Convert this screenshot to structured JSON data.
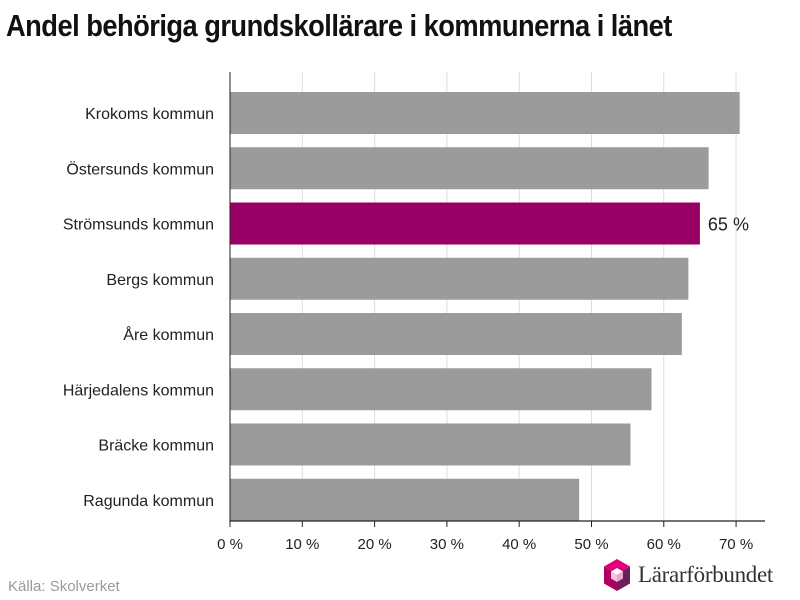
{
  "title": "Andel behöriga grundskollärare i kommunerna i länet",
  "source": "Källa: Skolverket",
  "logo": {
    "text": "Lärarförbundet",
    "icon": "lararforbundet-logo-icon"
  },
  "colors": {
    "bar_default": "#9b9b9b",
    "bar_highlight": "#990066",
    "grid": "#dddddd",
    "axis": "#222222"
  },
  "chart_data": {
    "type": "bar",
    "orientation": "horizontal",
    "title": "Andel behöriga grundskollärare i kommunerna i länet",
    "xlabel": "",
    "ylabel": "",
    "xlim": [
      0,
      74
    ],
    "grid": true,
    "x_ticks": [
      0,
      10,
      20,
      30,
      40,
      50,
      60,
      70
    ],
    "tick_labels": [
      "0 %",
      "10 %",
      "20 %",
      "30 %",
      "40 %",
      "50 %",
      "60 %",
      "70 %"
    ],
    "categories": [
      "Krokoms kommun",
      "Östersunds kommun",
      "Strömsunds kommun",
      "Bergs kommun",
      "Åre kommun",
      "Härjedalens kommun",
      "Bräcke kommun",
      "Ragunda kommun"
    ],
    "values": [
      70.5,
      66.2,
      65,
      63.4,
      62.5,
      58.3,
      55.4,
      48.3
    ],
    "highlight_index": 2,
    "data_labels": [
      {
        "index": 2,
        "text": "65 %"
      }
    ]
  }
}
